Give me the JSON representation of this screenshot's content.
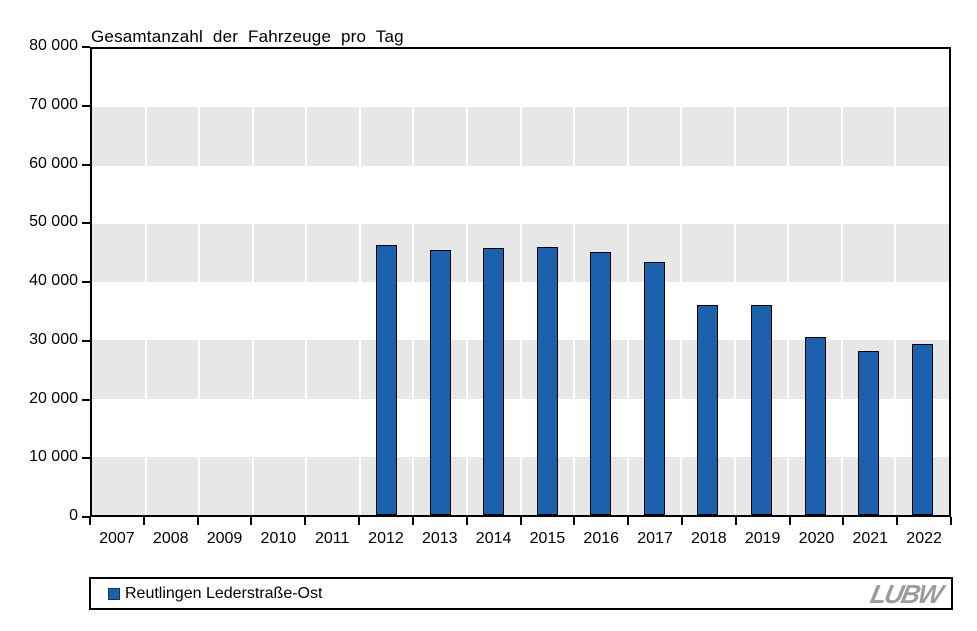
{
  "chart_data": {
    "type": "bar",
    "title": "Gesamtanzahl der Fahrzeuge pro Tag",
    "categories": [
      "2007",
      "2008",
      "2009",
      "2010",
      "2011",
      "2012",
      "2013",
      "2014",
      "2015",
      "2016",
      "2017",
      "2018",
      "2019",
      "2020",
      "2021",
      "2022"
    ],
    "series": [
      {
        "name": "Reutlingen Lederstraße-Ost",
        "values": [
          null,
          null,
          null,
          null,
          null,
          46400,
          45500,
          45900,
          46000,
          45200,
          43500,
          36000,
          36100,
          30500,
          28100,
          29400
        ]
      }
    ],
    "xlabel": "",
    "ylabel": "",
    "ylim": [
      0,
      80000
    ],
    "y_tick_step": 10000,
    "y_tick_labels_top_to_bottom": [
      "80 000",
      "70 000",
      "60 000",
      "50 000",
      "40 000",
      "30 000",
      "20 000",
      "10 000",
      "0"
    ],
    "grid": "alternating horizontal gray bands (70-60k, 50-40k, 30-20k, 10-0k) with white vertical column separators",
    "legend_position": "bottom",
    "colors": {
      "bar_fill": "#1B61AE",
      "bar_border": "#000000",
      "band_gray": "#E7E7E7",
      "axis": "#000000",
      "text": "#000000"
    }
  },
  "legend": {
    "label": "Reutlingen Lederstraße-Ost",
    "marker_color": "#1B61AE"
  },
  "logo": {
    "text": "LUBW",
    "color": "#9C9C9C"
  }
}
